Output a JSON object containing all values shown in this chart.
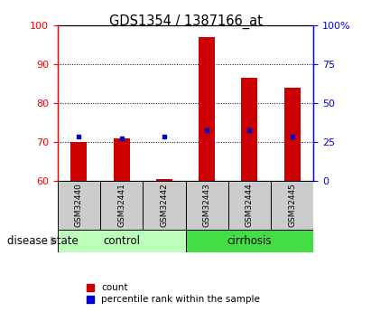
{
  "title": "GDS1354 / 1387166_at",
  "samples": [
    "GSM32440",
    "GSM32441",
    "GSM32442",
    "GSM32443",
    "GSM32444",
    "GSM32445"
  ],
  "bar_tops": [
    70.0,
    71.0,
    60.5,
    97.0,
    86.5,
    84.0
  ],
  "bar_bottoms": [
    60.0,
    60.0,
    60.0,
    60.0,
    60.0,
    60.0
  ],
  "blue_markers": [
    71.5,
    71.0,
    71.5,
    73.0,
    73.0,
    71.5
  ],
  "ylim": [
    60,
    100
  ],
  "yticks_left": [
    60,
    70,
    80,
    90,
    100
  ],
  "yticks_right_vals": [
    "0",
    "25",
    "50",
    "75",
    "100%"
  ],
  "yticks_right_positions": [
    60,
    70,
    80,
    90,
    100
  ],
  "bar_color": "#cc0000",
  "blue_color": "#0000cc",
  "control_color": "#bbffbb",
  "cirrhosis_color": "#44dd44",
  "sample_bg": "#cccccc",
  "legend_red_label": "count",
  "legend_blue_label": "percentile rank within the sample",
  "group_label": "disease state"
}
